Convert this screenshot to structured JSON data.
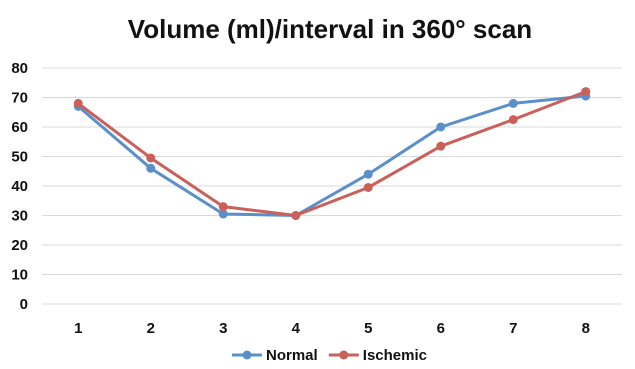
{
  "chart_data": {
    "type": "line",
    "title": "Volume (ml)/interval in 360° scan",
    "xlabel": "",
    "ylabel": "",
    "categories": [
      "1",
      "2",
      "3",
      "4",
      "5",
      "6",
      "7",
      "8"
    ],
    "ylim": [
      0,
      80
    ],
    "yticks": [
      0,
      10,
      20,
      30,
      40,
      50,
      60,
      70,
      80
    ],
    "grid": true,
    "legend_position": "bottom",
    "series": [
      {
        "name": "Normal",
        "color": "#5b8fc9",
        "values": [
          67,
          46,
          30.5,
          30,
          44,
          60,
          68,
          70.5
        ]
      },
      {
        "name": "Ischemic",
        "color": "#c9605a",
        "values": [
          68,
          49.5,
          33,
          30,
          39.5,
          53.5,
          62.5,
          72
        ]
      }
    ]
  }
}
